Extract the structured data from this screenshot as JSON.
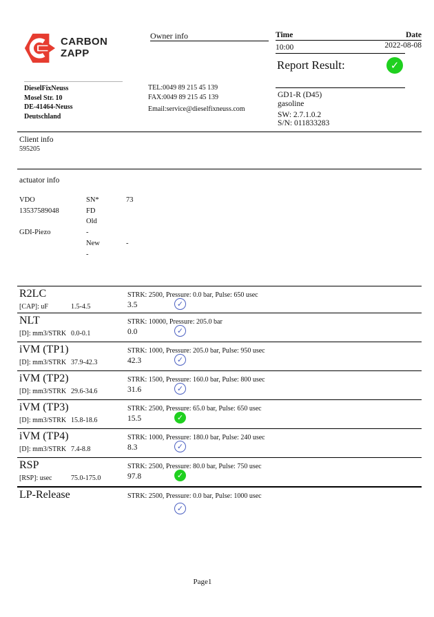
{
  "brand": {
    "name_line1": "CARBON",
    "name_line2": "ZAPP",
    "logo_red": "#e63c30"
  },
  "header": {
    "owner_info_label": "Owner info",
    "time_label": "Time",
    "date_label": "Date",
    "time_value": "10:00",
    "date_value": "2022-08-08",
    "report_result_label": "Report Result:",
    "report_result_icon": "check-circle-green"
  },
  "owner": {
    "company": "DieselFixNeuss",
    "street": "Mosel Str. 10",
    "city": "DE-41464-Neuss",
    "country": "Deutschland",
    "tel": "TEL:0049 89 215 45 139",
    "fax": "FAX:0049 89 215 45 139",
    "email": "Email:service@dieselfixneuss.com"
  },
  "machine": {
    "model": "GD1-R (D45)",
    "fuel": "gasoline",
    "sw": "SW: 2.7.1.0.2",
    "sn": "S/N: 011833283"
  },
  "client": {
    "label": "Client info",
    "id": "595205"
  },
  "actuator": {
    "label": "actuator info",
    "rows": [
      [
        "VDO",
        "SN*",
        "73"
      ],
      [
        "13537589048",
        "FD",
        ""
      ],
      [
        "",
        "Old",
        ""
      ],
      [
        "GDI-Piezo",
        "-",
        ""
      ],
      [
        "",
        "New",
        "-"
      ],
      [
        "",
        "-",
        ""
      ]
    ]
  },
  "tests": [
    {
      "name": "R2LC",
      "params": "STRK: 2500, Pressure: 0.0 bar, Pulse: 650 usec",
      "unit": "[CAP]: uF",
      "range": "1.5-4.5",
      "value": "3.5",
      "status_icon": "check-circle-blue"
    },
    {
      "name": "NLT",
      "params": "STRK: 10000, Pressure: 205.0 bar",
      "unit": "[D]: mm3/STRK",
      "range": "0.0-0.1",
      "value": "0.0",
      "status_icon": "check-circle-blue"
    },
    {
      "name": "iVM (TP1)",
      "params": "STRK: 1000, Pressure: 205.0 bar, Pulse: 950 usec",
      "unit": "[D]: mm3/STRK",
      "range": "37.9-42.3",
      "value": "42.3",
      "status_icon": "check-circle-blue"
    },
    {
      "name": "iVM (TP2)",
      "params": "STRK: 1500, Pressure: 160.0 bar, Pulse: 800 usec",
      "unit": "[D]: mm3/STRK",
      "range": "29.6-34.6",
      "value": "31.6",
      "status_icon": "check-circle-blue"
    },
    {
      "name": "iVM (TP3)",
      "params": "STRK: 2500, Pressure: 65.0 bar, Pulse: 650 usec",
      "unit": "[D]: mm3/STRK",
      "range": "15.8-18.6",
      "value": "15.5",
      "status_icon": "check-circle-green"
    },
    {
      "name": "iVM (TP4)",
      "params": "STRK: 1000, Pressure: 180.0 bar, Pulse: 240 usec",
      "unit": "[D]: mm3/STRK",
      "range": "7.4-8.8",
      "value": "8.3",
      "status_icon": "check-circle-blue"
    },
    {
      "name": "RSP",
      "params": "STRK: 2500, Pressure: 80.0 bar, Pulse: 750 usec",
      "unit": "[RSP]: usec",
      "range": "75.0-175.0",
      "value": "97.8",
      "status_icon": "check-circle-green"
    },
    {
      "name": "LP-Release",
      "params": "STRK: 2500, Pressure: 0.0 bar, Pulse: 1000 usec",
      "unit": "",
      "range": "",
      "value": "",
      "status_icon": "check-circle-blue"
    }
  ],
  "footer": {
    "page_label": "Page1"
  },
  "colors": {
    "pass_green": "#1fd01f",
    "pass_blue": "#4a5fc1",
    "logo_red": "#e63c30"
  }
}
